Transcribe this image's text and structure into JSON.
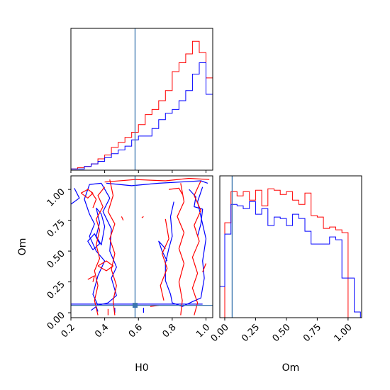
{
  "chart_data": {
    "type": "corner-plot",
    "parameters": [
      "H0",
      "Om"
    ],
    "truth": {
      "H0": 0.58,
      "Om": 0.06,
      "color": "#3b75af"
    },
    "series_colors": [
      "#ff0000",
      "#0000ff"
    ],
    "panels": [
      {
        "id": "H0-hist",
        "type": "histogram",
        "x": "H0",
        "xlim": [
          0.2,
          1.04
        ],
        "x_edges": [
          0.2,
          0.24,
          0.28,
          0.32,
          0.36,
          0.4,
          0.44,
          0.48,
          0.52,
          0.56,
          0.6,
          0.64,
          0.68,
          0.72,
          0.76,
          0.8,
          0.84,
          0.88,
          0.92,
          0.96,
          1.0,
          1.04
        ],
        "series": [
          {
            "color": "#ff0000",
            "values": [
              1,
              2,
              3,
              5,
              9,
              12,
              18,
              22,
              26,
              30,
              36,
              44,
              48,
              55,
              63,
              78,
              85,
              92,
              102,
              93,
              73,
              0
            ]
          },
          {
            "color": "#0000ff",
            "values": [
              1,
              1,
              3,
              5,
              7,
              10,
              13,
              16,
              19,
              24,
              27,
              27,
              33,
              40,
              45,
              48,
              55,
              63,
              76,
              85,
              60,
              11
            ]
          }
        ]
      },
      {
        "id": "H0-Om-contour",
        "type": "contour",
        "x": "H0",
        "y": "Om",
        "xlim": [
          0.2,
          1.04
        ],
        "ylim": [
          -0.04,
          1.11
        ],
        "xticks": [
          "0.2",
          "0.4",
          "0.6",
          "0.8",
          "1.0"
        ],
        "yticks": [
          "0.00",
          "0.25",
          "0.50",
          "0.75",
          "1.00"
        ],
        "xlabel": "H0",
        "ylabel": "Om",
        "contours": [
          {
            "color": "#0000ff",
            "points": [
              [
                0.38,
                1.05
              ],
              [
                0.31,
                1.04
              ],
              [
                0.28,
                0.92
              ],
              [
                0.31,
                0.8
              ],
              [
                0.34,
                0.72
              ],
              [
                0.31,
                0.62
              ],
              [
                0.35,
                0.5
              ],
              [
                0.4,
                0.42
              ],
              [
                0.36,
                0.3
              ],
              [
                0.33,
                0.15
              ],
              [
                0.36,
                0.06
              ],
              [
                0.42,
                0.08
              ],
              [
                0.47,
                0.14
              ],
              [
                0.44,
                0.28
              ],
              [
                0.47,
                0.37
              ],
              [
                0.43,
                0.5
              ],
              [
                0.44,
                0.68
              ],
              [
                0.39,
                0.82
              ],
              [
                0.43,
                0.93
              ],
              [
                0.38,
                1.05
              ]
            ]
          },
          {
            "color": "#0000ff",
            "points": [
              [
                0.35,
                0.85
              ],
              [
                0.37,
                0.73
              ],
              [
                0.35,
                0.62
              ],
              [
                0.38,
                0.55
              ],
              [
                0.4,
                0.7
              ],
              [
                0.38,
                0.8
              ],
              [
                0.35,
                0.85
              ]
            ]
          },
          {
            "color": "#0000ff",
            "points": [
              [
                0.22,
                1.01
              ],
              [
                0.25,
                0.93
              ],
              [
                0.2,
                0.88
              ]
            ]
          },
          {
            "color": "#0000ff",
            "points": [
              [
                0.33,
                0.51
              ],
              [
                0.3,
                0.58
              ],
              [
                0.34,
                0.64
              ],
              [
                0.37,
                0.56
              ],
              [
                0.33,
                0.51
              ]
            ]
          },
          {
            "color": "#0000ff",
            "points": [
              [
                0.32,
                0.02
              ],
              [
                0.35,
                0.05
              ],
              [
                0.36,
                0.01
              ]
            ]
          },
          {
            "color": "#0000ff",
            "points": [
              [
                0.41,
                1.05
              ],
              [
                0.56,
                1.03
              ],
              [
                0.72,
                1.05
              ],
              [
                0.85,
                1.06
              ],
              [
                0.97,
                1.07
              ],
              [
                1.01,
                1.05
              ]
            ]
          },
          {
            "color": "#0000ff",
            "points": [
              [
                0.81,
                0.9
              ],
              [
                0.79,
                0.78
              ],
              [
                0.8,
                0.62
              ],
              [
                0.78,
                0.52
              ],
              [
                0.76,
                0.4
              ],
              [
                0.76,
                0.26
              ],
              [
                0.79,
                0.15
              ],
              [
                0.8,
                0.08
              ],
              [
                0.86,
                0.05
              ],
              [
                0.92,
                0.09
              ],
              [
                0.97,
                0.12
              ],
              [
                0.99,
                0.28
              ],
              [
                0.98,
                0.42
              ],
              [
                1.0,
                0.6
              ],
              [
                0.97,
                0.78
              ],
              [
                0.95,
                0.9
              ],
              [
                0.98,
                1.02
              ]
            ]
          },
          {
            "color": "#0000ff",
            "points": [
              [
                0.76,
                0.52
              ],
              [
                0.72,
                0.58
              ],
              [
                0.74,
                0.5
              ],
              [
                0.77,
                0.42
              ]
            ]
          },
          {
            "color": "#0000ff",
            "points": [
              [
                0.9,
                1.0
              ],
              [
                0.94,
                0.94
              ],
              [
                0.93,
                0.86
              ],
              [
                0.98,
                0.84
              ],
              [
                0.97,
                0.72
              ],
              [
                0.95,
                0.62
              ]
            ]
          },
          {
            "color": "#0000ff",
            "points": [
              [
                0.2,
                0.07
              ],
              [
                0.55,
                0.07
              ],
              [
                0.98,
                0.07
              ]
            ]
          },
          {
            "color": "#0000ff",
            "points": [
              [
                0.46,
                0.0
              ],
              [
                0.46,
                0.04
              ]
            ]
          },
          {
            "color": "#0000ff",
            "points": [
              [
                0.63,
                0.0
              ],
              [
                0.63,
                0.04
              ]
            ]
          },
          {
            "color": "#ff0000",
            "points": [
              [
                0.4,
                1.02
              ],
              [
                0.36,
                0.95
              ],
              [
                0.39,
                0.86
              ],
              [
                0.35,
                0.76
              ],
              [
                0.37,
                0.67
              ],
              [
                0.35,
                0.55
              ],
              [
                0.37,
                0.44
              ],
              [
                0.34,
                0.34
              ],
              [
                0.36,
                0.22
              ],
              [
                0.34,
                0.1
              ],
              [
                0.36,
                -0.02
              ]
            ]
          },
          {
            "color": "#ff0000",
            "points": [
              [
                0.43,
                1.08
              ],
              [
                0.45,
                0.95
              ],
              [
                0.42,
                0.82
              ],
              [
                0.46,
                0.72
              ],
              [
                0.43,
                0.6
              ],
              [
                0.46,
                0.48
              ],
              [
                0.44,
                0.35
              ],
              [
                0.47,
                0.22
              ],
              [
                0.45,
                0.1
              ],
              [
                0.46,
                -0.02
              ]
            ]
          },
          {
            "color": "#ff0000",
            "points": [
              [
                0.32,
                0.98
              ],
              [
                0.35,
                0.92
              ],
              [
                0.33,
                0.85
              ]
            ]
          },
          {
            "color": "#ff0000",
            "points": [
              [
                0.26,
                0.97
              ],
              [
                0.3,
                1.0
              ],
              [
                0.33,
                0.97
              ],
              [
                0.3,
                0.93
              ],
              [
                0.26,
                0.97
              ]
            ]
          },
          {
            "color": "#ff0000",
            "points": [
              [
                0.36,
                0.38
              ],
              [
                0.41,
                0.42
              ],
              [
                0.45,
                0.38
              ],
              [
                0.41,
                0.34
              ],
              [
                0.36,
                0.38
              ]
            ]
          },
          {
            "color": "#ff0000",
            "points": [
              [
                0.3,
                0.27
              ],
              [
                0.34,
                0.3
              ],
              [
                0.33,
                0.25
              ]
            ]
          },
          {
            "color": "#ff0000",
            "points": [
              [
                0.85,
                1.05
              ],
              [
                0.87,
                0.9
              ],
              [
                0.83,
                0.78
              ],
              [
                0.87,
                0.65
              ],
              [
                0.84,
                0.52
              ],
              [
                0.87,
                0.4
              ],
              [
                0.84,
                0.25
              ],
              [
                0.86,
                0.1
              ],
              [
                0.85,
                -0.02
              ]
            ]
          },
          {
            "color": "#ff0000",
            "points": [
              [
                0.97,
                1.07
              ],
              [
                0.93,
                0.95
              ],
              [
                0.97,
                0.83
              ],
              [
                0.93,
                0.71
              ],
              [
                0.96,
                0.58
              ],
              [
                0.92,
                0.45
              ],
              [
                0.95,
                0.32
              ],
              [
                0.92,
                0.2
              ],
              [
                0.95,
                0.08
              ],
              [
                0.93,
                -0.02
              ]
            ]
          },
          {
            "color": "#ff0000",
            "points": [
              [
                0.76,
                0.76
              ],
              [
                0.78,
                0.6
              ],
              [
                0.74,
                0.48
              ],
              [
                0.77,
                0.36
              ],
              [
                0.73,
                0.22
              ],
              [
                0.75,
                0.1
              ]
            ]
          },
          {
            "color": "#ff0000",
            "points": [
              [
                0.4,
                1.06
              ],
              [
                0.58,
                1.08
              ],
              [
                0.76,
                1.07
              ],
              [
                0.9,
                1.09
              ],
              [
                1.02,
                1.08
              ]
            ]
          },
          {
            "color": "#ff0000",
            "points": [
              [
                0.67,
                0.05
              ],
              [
                0.72,
                0.06
              ]
            ]
          },
          {
            "color": "#ff0000",
            "points": [
              [
                0.42,
                -0.02
              ],
              [
                0.42,
                0.03
              ]
            ]
          },
          {
            "color": "#ff0000",
            "points": [
              [
                0.78,
                1.0
              ],
              [
                0.84,
                1.01
              ],
              [
                0.86,
                0.96
              ]
            ]
          },
          {
            "color": "#ff0000",
            "points": [
              [
                0.5,
                0.78
              ],
              [
                0.51,
                0.75
              ]
            ]
          },
          {
            "color": "#ff0000",
            "points": [
              [
                0.62,
                0.77
              ],
              [
                0.63,
                0.78
              ]
            ]
          },
          {
            "color": "#ff0000",
            "points": [
              [
                0.98,
                0.33
              ],
              [
                1.0,
                0.4
              ]
            ]
          }
        ]
      },
      {
        "id": "Om-hist",
        "type": "histogram",
        "x": "Om",
        "xlim": [
          -0.04,
          1.11
        ],
        "xticks": [
          "0.00",
          "0.25",
          "0.50",
          "0.75",
          "1.00"
        ],
        "xlabel": "Om",
        "x_edges": [
          -0.05,
          0.0,
          0.05,
          0.1,
          0.15,
          0.2,
          0.25,
          0.3,
          0.35,
          0.4,
          0.45,
          0.5,
          0.55,
          0.6,
          0.65,
          0.7,
          0.75,
          0.8,
          0.85,
          0.9,
          0.95,
          1.0,
          1.05,
          1.1
        ],
        "series": [
          {
            "color": "#ff0000",
            "values": [
              0,
              67,
              89,
              86,
              89,
              83,
              90,
              79,
              91,
              90,
              87,
              89,
              83,
              80,
              88,
              72,
              71,
              63,
              64,
              62,
              60,
              0,
              0
            ]
          },
          {
            "color": "#0000ff",
            "values": [
              22,
              59,
              80,
              79,
              77,
              82,
              73,
              77,
              65,
              71,
              70,
              65,
              73,
              70,
              61,
              52,
              52,
              52,
              57,
              55,
              28,
              28,
              4
            ]
          }
        ]
      }
    ]
  }
}
